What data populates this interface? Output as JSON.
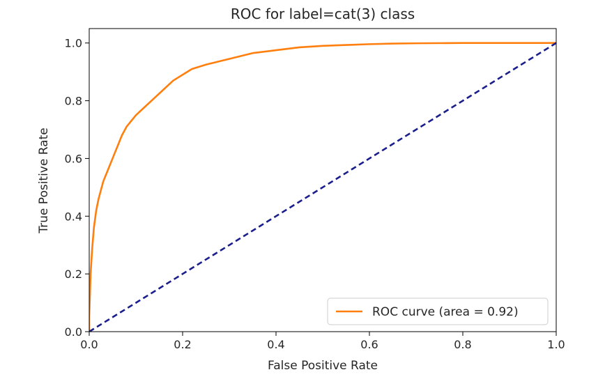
{
  "chart_data": {
    "type": "line",
    "title": "ROC for label=cat(3) class",
    "xlabel": "False Positive Rate",
    "ylabel": "True Positive Rate",
    "xlim": [
      0.0,
      1.0
    ],
    "ylim": [
      0.0,
      1.05
    ],
    "xticks": [
      "0.0",
      "0.2",
      "0.4",
      "0.6",
      "0.8",
      "1.0"
    ],
    "yticks": [
      "0.0",
      "0.2",
      "0.4",
      "0.6",
      "0.8",
      "1.0"
    ],
    "grid": false,
    "legend_position": "lower-right",
    "series": [
      {
        "name": "ROC curve (area = 0.92)",
        "color": "#ff7f0e",
        "style": "solid",
        "x": [
          0.0,
          0.0,
          0.003,
          0.006,
          0.01,
          0.015,
          0.02,
          0.03,
          0.04,
          0.05,
          0.06,
          0.07,
          0.08,
          0.09,
          0.1,
          0.12,
          0.14,
          0.16,
          0.18,
          0.2,
          0.22,
          0.25,
          0.3,
          0.35,
          0.4,
          0.45,
          0.5,
          0.55,
          0.6,
          0.65,
          0.7,
          0.8,
          0.9,
          1.0
        ],
        "y": [
          0.0,
          0.05,
          0.2,
          0.28,
          0.36,
          0.42,
          0.46,
          0.52,
          0.56,
          0.6,
          0.64,
          0.68,
          0.71,
          0.73,
          0.75,
          0.78,
          0.81,
          0.84,
          0.87,
          0.89,
          0.91,
          0.925,
          0.945,
          0.965,
          0.975,
          0.985,
          0.99,
          0.993,
          0.996,
          0.998,
          0.999,
          1.0,
          1.0,
          1.0
        ]
      },
      {
        "name": "",
        "color": "#1a1e8c",
        "style": "dashed",
        "x": [
          0.0,
          1.0
        ],
        "y": [
          0.0,
          1.0
        ]
      }
    ],
    "legend": [
      "ROC curve (area = 0.92)"
    ]
  }
}
